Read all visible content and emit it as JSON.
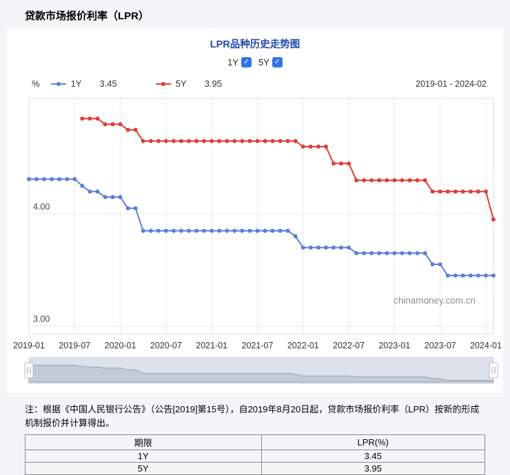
{
  "page": {
    "title": "贷款市场报价利率（LPR）",
    "background": "#f4f5f7"
  },
  "chart": {
    "title": "LPR品种历史走势图",
    "toggles": [
      {
        "label": "1Y",
        "checked": true
      },
      {
        "label": "5Y",
        "checked": true
      }
    ],
    "unit_label": "%",
    "legend": [
      {
        "label": "1Y",
        "value": "3.45",
        "color": "#5b7fd9"
      },
      {
        "label": "5Y",
        "value": "3.95",
        "color": "#e23c36"
      }
    ],
    "date_range": "2019-01 - 2024-02",
    "watermark": "chinamoney.com.cn",
    "accent_blue": "#2248b0",
    "checkbox_blue": "#3273e8"
  },
  "chart_data": {
    "type": "line",
    "title": "LPR品种历史走势图",
    "ylabel": "%",
    "ylim": [
      2.93,
      5.03
    ],
    "y_gridlines": [
      4.0,
      3.0
    ],
    "x_tick_every": 6,
    "grid": true,
    "legend_position": "top-left",
    "x": [
      "2019-01",
      "2019-02",
      "2019-03",
      "2019-04",
      "2019-05",
      "2019-06",
      "2019-07",
      "2019-08",
      "2019-09",
      "2019-10",
      "2019-11",
      "2019-12",
      "2020-01",
      "2020-02",
      "2020-03",
      "2020-04",
      "2020-05",
      "2020-06",
      "2020-07",
      "2020-08",
      "2020-09",
      "2020-10",
      "2020-11",
      "2020-12",
      "2021-01",
      "2021-02",
      "2021-03",
      "2021-04",
      "2021-05",
      "2021-06",
      "2021-07",
      "2021-08",
      "2021-09",
      "2021-10",
      "2021-11",
      "2021-12",
      "2022-01",
      "2022-02",
      "2022-03",
      "2022-04",
      "2022-05",
      "2022-06",
      "2022-07",
      "2022-08",
      "2022-09",
      "2022-10",
      "2022-11",
      "2022-12",
      "2023-01",
      "2023-02",
      "2023-03",
      "2023-04",
      "2023-05",
      "2023-06",
      "2023-07",
      "2023-08",
      "2023-09",
      "2023-10",
      "2023-11",
      "2023-12",
      "2024-01",
      "2024-02"
    ],
    "series": [
      {
        "name": "1Y",
        "color": "#5b7fd9",
        "values": [
          4.31,
          4.31,
          4.31,
          4.31,
          4.31,
          4.31,
          4.31,
          4.25,
          4.2,
          4.2,
          4.15,
          4.15,
          4.15,
          4.05,
          4.05,
          3.85,
          3.85,
          3.85,
          3.85,
          3.85,
          3.85,
          3.85,
          3.85,
          3.85,
          3.85,
          3.85,
          3.85,
          3.85,
          3.85,
          3.85,
          3.85,
          3.85,
          3.85,
          3.85,
          3.85,
          3.8,
          3.7,
          3.7,
          3.7,
          3.7,
          3.7,
          3.7,
          3.7,
          3.65,
          3.65,
          3.65,
          3.65,
          3.65,
          3.65,
          3.65,
          3.65,
          3.65,
          3.65,
          3.55,
          3.55,
          3.45,
          3.45,
          3.45,
          3.45,
          3.45,
          3.45,
          3.45
        ]
      },
      {
        "name": "5Y",
        "color": "#e23c36",
        "values": [
          null,
          null,
          null,
          null,
          null,
          null,
          null,
          4.85,
          4.85,
          4.85,
          4.8,
          4.8,
          4.8,
          4.75,
          4.75,
          4.65,
          4.65,
          4.65,
          4.65,
          4.65,
          4.65,
          4.65,
          4.65,
          4.65,
          4.65,
          4.65,
          4.65,
          4.65,
          4.65,
          4.65,
          4.65,
          4.65,
          4.65,
          4.65,
          4.65,
          4.65,
          4.6,
          4.6,
          4.6,
          4.6,
          4.45,
          4.45,
          4.45,
          4.3,
          4.3,
          4.3,
          4.3,
          4.3,
          4.3,
          4.3,
          4.3,
          4.3,
          4.3,
          4.2,
          4.2,
          4.2,
          4.2,
          4.2,
          4.2,
          4.2,
          4.2,
          3.95
        ]
      }
    ]
  },
  "note": "注：根据《中国人民银行公告》（公告[2019]第15号），自2019年8月20日起，贷款市场报价利率（LPR）按新的形成机制报价并计算得出。",
  "table": {
    "headers": [
      "期限",
      "LPR(%)"
    ],
    "rows": [
      [
        "1Y",
        "3.45"
      ],
      [
        "5Y",
        "3.95"
      ]
    ]
  }
}
